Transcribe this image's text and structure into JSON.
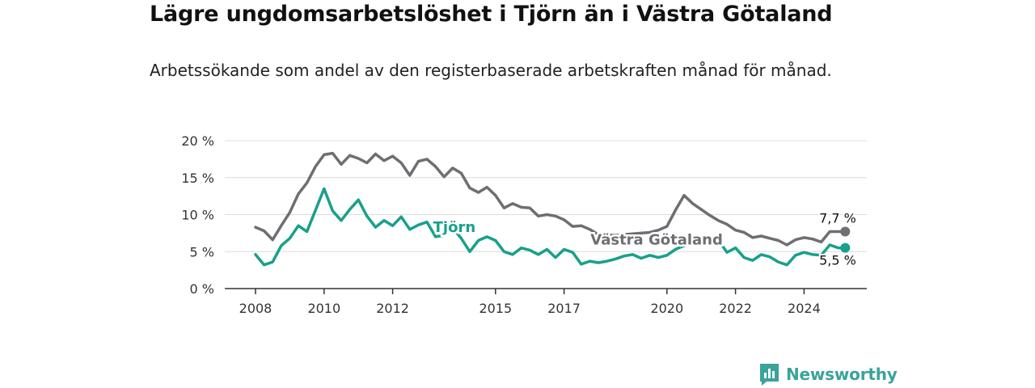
{
  "header": {
    "title": "Lägre ungdomsarbetslöshet i Tjörn än i Västra Götaland",
    "subtitle": "Arbetssökande som andel av den registerbaserade arbetskraften månad för månad."
  },
  "brand": {
    "name": "Newsworthy",
    "icon": "newsworthy-logo-icon",
    "color": "#3aa39a"
  },
  "chart_data": {
    "type": "line",
    "title": "Lägre ungdomsarbetslöshet i Tjörn än i Västra Götaland",
    "subtitle": "Arbetssökande som andel av den registerbaserade arbetskraften månad för månad.",
    "x_ticks": [
      "2008",
      "2010",
      "2012",
      "2015",
      "2017",
      "2020",
      "2022",
      "2024"
    ],
    "x_range": [
      2008,
      2025.4
    ],
    "y_ticks": [
      "0 %",
      "5 %",
      "10 %",
      "15 %",
      "20 %"
    ],
    "y_range": [
      0,
      20
    ],
    "grid": true,
    "series": [
      {
        "name": "Västra Götaland",
        "color": "#6e6e73",
        "end_label": "7,7 %",
        "points": [
          [
            2008.0,
            8.3
          ],
          [
            2008.25,
            7.8
          ],
          [
            2008.5,
            6.6
          ],
          [
            2008.75,
            8.5
          ],
          [
            2009.0,
            10.3
          ],
          [
            2009.25,
            12.8
          ],
          [
            2009.5,
            14.3
          ],
          [
            2009.75,
            16.5
          ],
          [
            2010.0,
            18.1
          ],
          [
            2010.25,
            18.3
          ],
          [
            2010.5,
            16.8
          ],
          [
            2010.75,
            18.0
          ],
          [
            2011.0,
            17.6
          ],
          [
            2011.25,
            17.0
          ],
          [
            2011.5,
            18.2
          ],
          [
            2011.75,
            17.3
          ],
          [
            2012.0,
            17.9
          ],
          [
            2012.25,
            17.0
          ],
          [
            2012.5,
            15.3
          ],
          [
            2012.75,
            17.2
          ],
          [
            2013.0,
            17.5
          ],
          [
            2013.25,
            16.5
          ],
          [
            2013.5,
            15.1
          ],
          [
            2013.75,
            16.3
          ],
          [
            2014.0,
            15.6
          ],
          [
            2014.25,
            13.6
          ],
          [
            2014.5,
            13.0
          ],
          [
            2014.75,
            13.7
          ],
          [
            2015.0,
            12.6
          ],
          [
            2015.25,
            10.9
          ],
          [
            2015.5,
            11.5
          ],
          [
            2015.75,
            11.0
          ],
          [
            2016.0,
            10.9
          ],
          [
            2016.25,
            9.8
          ],
          [
            2016.5,
            10.0
          ],
          [
            2016.75,
            9.8
          ],
          [
            2017.0,
            9.3
          ],
          [
            2017.25,
            8.4
          ],
          [
            2017.5,
            8.5
          ],
          [
            2017.75,
            8.0
          ],
          [
            2018.0,
            7.3
          ],
          [
            2018.5,
            7.2
          ],
          [
            2019.0,
            7.4
          ],
          [
            2019.5,
            7.6
          ],
          [
            2019.75,
            7.9
          ],
          [
            2020.0,
            8.4
          ],
          [
            2020.25,
            10.6
          ],
          [
            2020.5,
            12.6
          ],
          [
            2020.75,
            11.5
          ],
          [
            2021.0,
            10.7
          ],
          [
            2021.25,
            9.9
          ],
          [
            2021.5,
            9.2
          ],
          [
            2021.75,
            8.7
          ],
          [
            2022.0,
            7.9
          ],
          [
            2022.25,
            7.6
          ],
          [
            2022.5,
            6.9
          ],
          [
            2022.75,
            7.1
          ],
          [
            2023.0,
            6.8
          ],
          [
            2023.25,
            6.5
          ],
          [
            2023.5,
            5.9
          ],
          [
            2023.75,
            6.6
          ],
          [
            2024.0,
            6.9
          ],
          [
            2024.25,
            6.7
          ],
          [
            2024.5,
            6.3
          ],
          [
            2024.75,
            7.7
          ],
          [
            2025.0,
            7.7
          ],
          [
            2025.2,
            7.7
          ]
        ]
      },
      {
        "name": "Tjörn",
        "color": "#18a08a",
        "end_label": "5,5 %",
        "points": [
          [
            2008.0,
            4.6
          ],
          [
            2008.25,
            3.2
          ],
          [
            2008.5,
            3.6
          ],
          [
            2008.75,
            5.8
          ],
          [
            2009.0,
            6.8
          ],
          [
            2009.25,
            8.5
          ],
          [
            2009.5,
            7.7
          ],
          [
            2009.75,
            10.6
          ],
          [
            2010.0,
            13.5
          ],
          [
            2010.25,
            10.5
          ],
          [
            2010.5,
            9.2
          ],
          [
            2010.75,
            10.7
          ],
          [
            2011.0,
            12.0
          ],
          [
            2011.25,
            9.8
          ],
          [
            2011.5,
            8.3
          ],
          [
            2011.75,
            9.2
          ],
          [
            2012.0,
            8.5
          ],
          [
            2012.25,
            9.7
          ],
          [
            2012.5,
            8.0
          ],
          [
            2012.75,
            8.6
          ],
          [
            2013.0,
            9.0
          ],
          [
            2013.25,
            7.0
          ],
          [
            2013.5,
            7.2
          ],
          [
            2013.75,
            8.2
          ],
          [
            2014.0,
            6.8
          ],
          [
            2014.25,
            5.0
          ],
          [
            2014.5,
            6.5
          ],
          [
            2014.75,
            7.0
          ],
          [
            2015.0,
            6.5
          ],
          [
            2015.25,
            5.0
          ],
          [
            2015.5,
            4.6
          ],
          [
            2015.75,
            5.5
          ],
          [
            2016.0,
            5.2
          ],
          [
            2016.25,
            4.6
          ],
          [
            2016.5,
            5.3
          ],
          [
            2016.75,
            4.2
          ],
          [
            2017.0,
            5.3
          ],
          [
            2017.25,
            4.9
          ],
          [
            2017.5,
            3.3
          ],
          [
            2017.75,
            3.7
          ],
          [
            2018.0,
            3.5
          ],
          [
            2018.25,
            3.7
          ],
          [
            2018.5,
            4.0
          ],
          [
            2018.75,
            4.4
          ],
          [
            2019.0,
            4.6
          ],
          [
            2019.25,
            4.1
          ],
          [
            2019.5,
            4.5
          ],
          [
            2019.75,
            4.2
          ],
          [
            2020.0,
            4.5
          ],
          [
            2020.25,
            5.3
          ],
          [
            2020.5,
            5.8
          ],
          [
            2020.75,
            6.1
          ],
          [
            2021.0,
            6.4
          ],
          [
            2021.25,
            6.6
          ],
          [
            2021.5,
            6.6
          ],
          [
            2021.75,
            4.9
          ],
          [
            2022.0,
            5.5
          ],
          [
            2022.25,
            4.2
          ],
          [
            2022.5,
            3.8
          ],
          [
            2022.75,
            4.6
          ],
          [
            2023.0,
            4.3
          ],
          [
            2023.25,
            3.6
          ],
          [
            2023.5,
            3.2
          ],
          [
            2023.75,
            4.5
          ],
          [
            2024.0,
            4.9
          ],
          [
            2024.25,
            4.6
          ],
          [
            2024.5,
            4.5
          ],
          [
            2024.75,
            5.9
          ],
          [
            2025.0,
            5.5
          ],
          [
            2025.2,
            5.5
          ]
        ]
      }
    ],
    "inline_labels": [
      {
        "series": "Tjörn",
        "text": "Tjörn",
        "x": 2013.8,
        "y": 8.3,
        "color": "#18a08a"
      },
      {
        "series": "Västra Götaland",
        "text": "Västra Götaland",
        "x": 2019.7,
        "y": 6.6,
        "color": "#6e6e73"
      }
    ]
  }
}
